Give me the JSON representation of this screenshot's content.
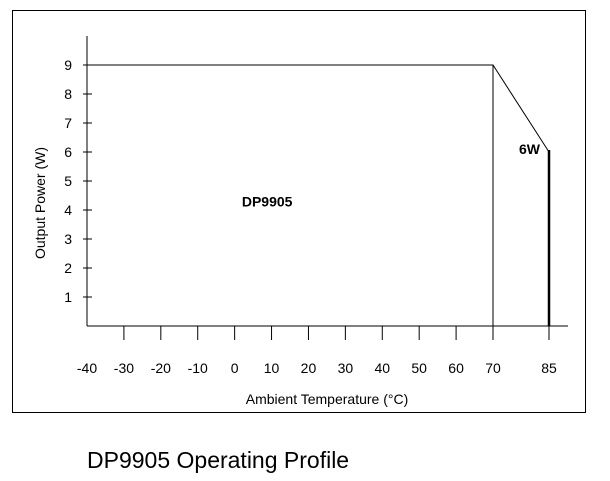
{
  "chart_data": {
    "type": "area",
    "title": "",
    "xlabel": "Ambient Temperature (°C)",
    "ylabel": "Output Power (W)",
    "x_ticks": [
      -40,
      -30,
      -20,
      -10,
      0,
      10,
      20,
      30,
      40,
      50,
      60,
      70,
      85
    ],
    "y_ticks": [
      1,
      2,
      3,
      4,
      5,
      6,
      7,
      8,
      9
    ],
    "xlim": [
      -40,
      85
    ],
    "ylim": [
      0,
      9
    ],
    "grid": false,
    "series": [
      {
        "x": [
          -40,
          70,
          85,
          85
        ],
        "y": [
          9,
          9,
          6,
          0
        ]
      }
    ],
    "annotations": [
      {
        "text": "DP9905",
        "x": 8,
        "y": 4.3
      },
      {
        "text": "6W",
        "x": 79.5,
        "y": 6.1
      }
    ]
  },
  "caption": "DP9905 Operating Profile"
}
